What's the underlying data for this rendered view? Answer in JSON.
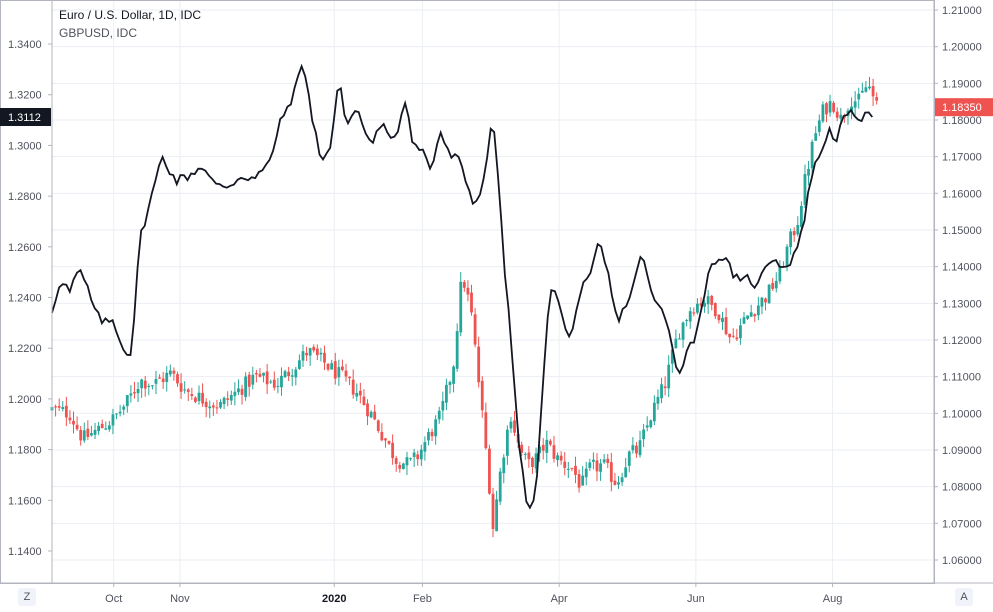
{
  "header": {
    "title": "Euro / U.S. Dollar, 1D, IDC",
    "subtitle": "GBPUSD, IDC"
  },
  "controls": {
    "left_scale_button": "Z",
    "right_scale_button": "A"
  },
  "colors": {
    "background": "#ffffff",
    "grid": "#ebeef4",
    "axis_line": "#b2b5be",
    "up": "#26a69a",
    "down": "#ef5350",
    "gbp_line": "#131722",
    "last_eur_tag": "#ef5350",
    "last_gbp_tag": "#131722"
  },
  "chart_data": {
    "type": "candlestick",
    "title": "Euro / U.S. Dollar, 1D, IDC",
    "grid": true,
    "x_ticks": [
      {
        "label": "Oct",
        "t": 0.07,
        "bold": false
      },
      {
        "label": "Nov",
        "t": 0.145,
        "bold": false
      },
      {
        "label": "2020",
        "t": 0.32,
        "bold": true
      },
      {
        "label": "Feb",
        "t": 0.42,
        "bold": false
      },
      {
        "label": "Apr",
        "t": 0.575,
        "bold": false
      },
      {
        "label": "Jun",
        "t": 0.73,
        "bold": false
      },
      {
        "label": "Aug",
        "t": 0.885,
        "bold": false
      }
    ],
    "eurusd": {
      "name": "Euro / U.S. Dollar",
      "axis": "right",
      "ylim": [
        1.055,
        1.212
      ],
      "ticks": [
        1.06,
        1.07,
        1.08,
        1.09,
        1.1,
        1.11,
        1.12,
        1.13,
        1.14,
        1.15,
        1.16,
        1.17,
        1.18,
        1.19,
        1.2,
        1.21
      ],
      "last_value": "1.18350",
      "close_path": [
        [
          0.0,
          1.101
        ],
        [
          0.02,
          1.1
        ],
        [
          0.035,
          1.093
        ],
        [
          0.055,
          1.096
        ],
        [
          0.07,
          1.0985
        ],
        [
          0.085,
          1.103
        ],
        [
          0.1,
          1.109
        ],
        [
          0.115,
          1.108
        ],
        [
          0.135,
          1.111
        ],
        [
          0.15,
          1.1065
        ],
        [
          0.17,
          1.104
        ],
        [
          0.19,
          1.102
        ],
        [
          0.21,
          1.106
        ],
        [
          0.23,
          1.11
        ],
        [
          0.255,
          1.108
        ],
        [
          0.275,
          1.113
        ],
        [
          0.29,
          1.117
        ],
        [
          0.31,
          1.1135
        ],
        [
          0.33,
          1.1095
        ],
        [
          0.345,
          1.106
        ],
        [
          0.36,
          1.1005
        ],
        [
          0.375,
          1.094
        ],
        [
          0.39,
          1.0875
        ],
        [
          0.405,
          1.086
        ],
        [
          0.415,
          1.0885
        ],
        [
          0.425,
          1.093
        ],
        [
          0.44,
          1.099
        ],
        [
          0.455,
          1.113
        ],
        [
          0.465,
          1.138
        ],
        [
          0.475,
          1.128
        ],
        [
          0.485,
          1.106
        ],
        [
          0.495,
          1.083
        ],
        [
          0.5,
          1.069
        ],
        [
          0.51,
          1.087
        ],
        [
          0.52,
          1.1
        ],
        [
          0.53,
          1.09
        ],
        [
          0.54,
          1.086
        ],
        [
          0.55,
          1.088
        ],
        [
          0.56,
          1.092
        ],
        [
          0.575,
          1.087
        ],
        [
          0.59,
          1.085
        ],
        [
          0.6,
          1.08
        ],
        [
          0.61,
          1.085
        ],
        [
          0.625,
          1.086
        ],
        [
          0.64,
          1.081
        ],
        [
          0.655,
          1.089
        ],
        [
          0.665,
          1.09
        ],
        [
          0.68,
          1.1
        ],
        [
          0.695,
          1.108
        ],
        [
          0.71,
          1.122
        ],
        [
          0.725,
          1.129
        ],
        [
          0.74,
          1.131
        ],
        [
          0.755,
          1.128
        ],
        [
          0.77,
          1.12
        ],
        [
          0.79,
          1.127
        ],
        [
          0.81,
          1.132
        ],
        [
          0.825,
          1.138
        ],
        [
          0.835,
          1.146
        ],
        [
          0.845,
          1.152
        ],
        [
          0.855,
          1.165
        ],
        [
          0.865,
          1.176
        ],
        [
          0.875,
          1.183
        ],
        [
          0.885,
          1.185
        ],
        [
          0.895,
          1.18
        ],
        [
          0.905,
          1.186
        ],
        [
          0.915,
          1.185
        ],
        [
          0.925,
          1.19
        ],
        [
          0.935,
          1.1835
        ]
      ]
    },
    "gbpusd": {
      "name": "GBPUSD",
      "axis": "left",
      "ylim": [
        1.1385,
        1.3535
      ],
      "ticks": [
        1.14,
        1.16,
        1.18,
        1.2,
        1.22,
        1.24,
        1.26,
        1.28,
        1.3,
        1.32,
        1.34
      ],
      "last_value": "1.3112",
      "close_path": [
        [
          0.0,
          1.234
        ],
        [
          0.01,
          1.248
        ],
        [
          0.02,
          1.242
        ],
        [
          0.03,
          1.251
        ],
        [
          0.04,
          1.244
        ],
        [
          0.05,
          1.233
        ],
        [
          0.06,
          1.23
        ],
        [
          0.07,
          1.231
        ],
        [
          0.08,
          1.22
        ],
        [
          0.09,
          1.218
        ],
        [
          0.1,
          1.264
        ],
        [
          0.11,
          1.276
        ],
        [
          0.125,
          1.296
        ],
        [
          0.14,
          1.286
        ],
        [
          0.155,
          1.288
        ],
        [
          0.17,
          1.292
        ],
        [
          0.185,
          1.284
        ],
        [
          0.2,
          1.284
        ],
        [
          0.215,
          1.288
        ],
        [
          0.23,
          1.287
        ],
        [
          0.245,
          1.292
        ],
        [
          0.26,
          1.31
        ],
        [
          0.275,
          1.321
        ],
        [
          0.285,
          1.334
        ],
        [
          0.295,
          1.31
        ],
        [
          0.305,
          1.295
        ],
        [
          0.315,
          1.298
        ],
        [
          0.325,
          1.325
        ],
        [
          0.335,
          1.308
        ],
        [
          0.345,
          1.315
        ],
        [
          0.36,
          1.301
        ],
        [
          0.375,
          1.307
        ],
        [
          0.39,
          1.303
        ],
        [
          0.4,
          1.319
        ],
        [
          0.41,
          1.3
        ],
        [
          0.42,
          1.298
        ],
        [
          0.43,
          1.29
        ],
        [
          0.44,
          1.306
        ],
        [
          0.45,
          1.296
        ],
        [
          0.46,
          1.295
        ],
        [
          0.47,
          1.285
        ],
        [
          0.48,
          1.276
        ],
        [
          0.49,
          1.288
        ],
        [
          0.5,
          1.311
        ],
        [
          0.505,
          1.292
        ],
        [
          0.51,
          1.265
        ],
        [
          0.52,
          1.224
        ],
        [
          0.53,
          1.18
        ],
        [
          0.54,
          1.153
        ],
        [
          0.55,
          1.168
        ],
        [
          0.56,
          1.226
        ],
        [
          0.565,
          1.245
        ],
        [
          0.575,
          1.238
        ],
        [
          0.585,
          1.222
        ],
        [
          0.6,
          1.243
        ],
        [
          0.61,
          1.247
        ],
        [
          0.62,
          1.262
        ],
        [
          0.63,
          1.25
        ],
        [
          0.64,
          1.231
        ],
        [
          0.65,
          1.236
        ],
        [
          0.66,
          1.246
        ],
        [
          0.67,
          1.258
        ],
        [
          0.68,
          1.24
        ],
        [
          0.69,
          1.236
        ],
        [
          0.7,
          1.226
        ],
        [
          0.71,
          1.21
        ],
        [
          0.72,
          1.219
        ],
        [
          0.73,
          1.225
        ],
        [
          0.74,
          1.243
        ],
        [
          0.75,
          1.255
        ],
        [
          0.76,
          1.256
        ],
        [
          0.77,
          1.251
        ],
        [
          0.78,
          1.245
        ],
        [
          0.79,
          1.248
        ],
        [
          0.8,
          1.244
        ],
        [
          0.81,
          1.254
        ],
        [
          0.82,
          1.256
        ],
        [
          0.83,
          1.251
        ],
        [
          0.84,
          1.256
        ],
        [
          0.85,
          1.265
        ],
        [
          0.86,
          1.287
        ],
        [
          0.87,
          1.296
        ],
        [
          0.88,
          1.306
        ],
        [
          0.89,
          1.303
        ],
        [
          0.9,
          1.312
        ],
        [
          0.91,
          1.312
        ],
        [
          0.92,
          1.311
        ],
        [
          0.93,
          1.3112
        ]
      ]
    }
  }
}
